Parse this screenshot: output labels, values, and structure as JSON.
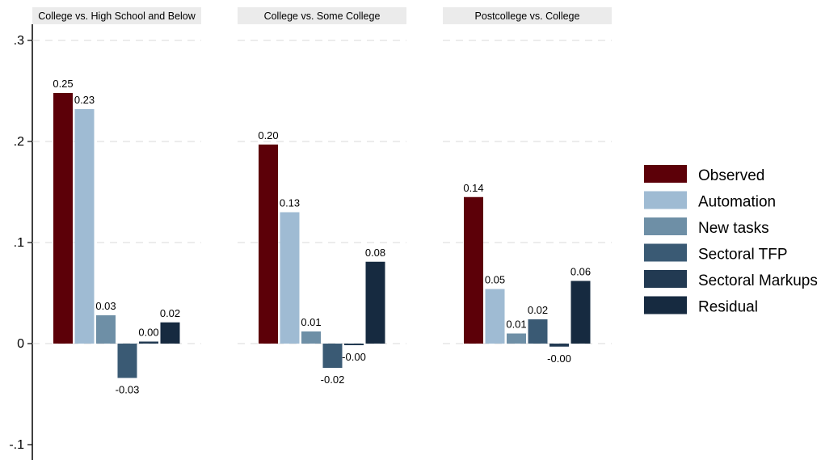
{
  "chart_data": {
    "type": "bar",
    "ylim": [
      -0.1,
      0.3
    ],
    "y_ticks": [
      {
        "value": 0.3,
        "label": ".3"
      },
      {
        "value": 0.2,
        "label": ".2"
      },
      {
        "value": 0.1,
        "label": ".1"
      },
      {
        "value": 0,
        "label": "0"
      },
      {
        "value": -0.1,
        "label": "-.1"
      }
    ],
    "grid": true,
    "legend_position": "right",
    "series_names": [
      "Observed",
      "Automation",
      "New tasks",
      "Sectoral TFP",
      "Sectoral Markups",
      "Residual"
    ],
    "series_colors": [
      "#5c0008",
      "#9fbbd3",
      "#6e8fa6",
      "#3a5a74",
      "#223a52",
      "#162a40"
    ],
    "panels": [
      {
        "title": "College vs. High School and Below",
        "values": [
          0.248,
          0.232,
          0.028,
          -0.034,
          0.002,
          0.021
        ],
        "labels": [
          "0.25",
          "0.23",
          "0.03",
          "-0.03",
          "0.00",
          "0.02"
        ]
      },
      {
        "title": "College vs. Some College",
        "values": [
          0.197,
          0.13,
          0.012,
          -0.024,
          -0.001,
          0.081
        ],
        "labels": [
          "0.20",
          "0.13",
          "0.01",
          "-0.02",
          "-0.00",
          "0.08"
        ]
      },
      {
        "title": "Postcollege vs. College",
        "values": [
          0.145,
          0.054,
          0.01,
          0.024,
          -0.003,
          0.062
        ],
        "labels": [
          "0.14",
          "0.05",
          "0.01",
          "0.02",
          "-0.00",
          "0.06"
        ]
      }
    ]
  }
}
